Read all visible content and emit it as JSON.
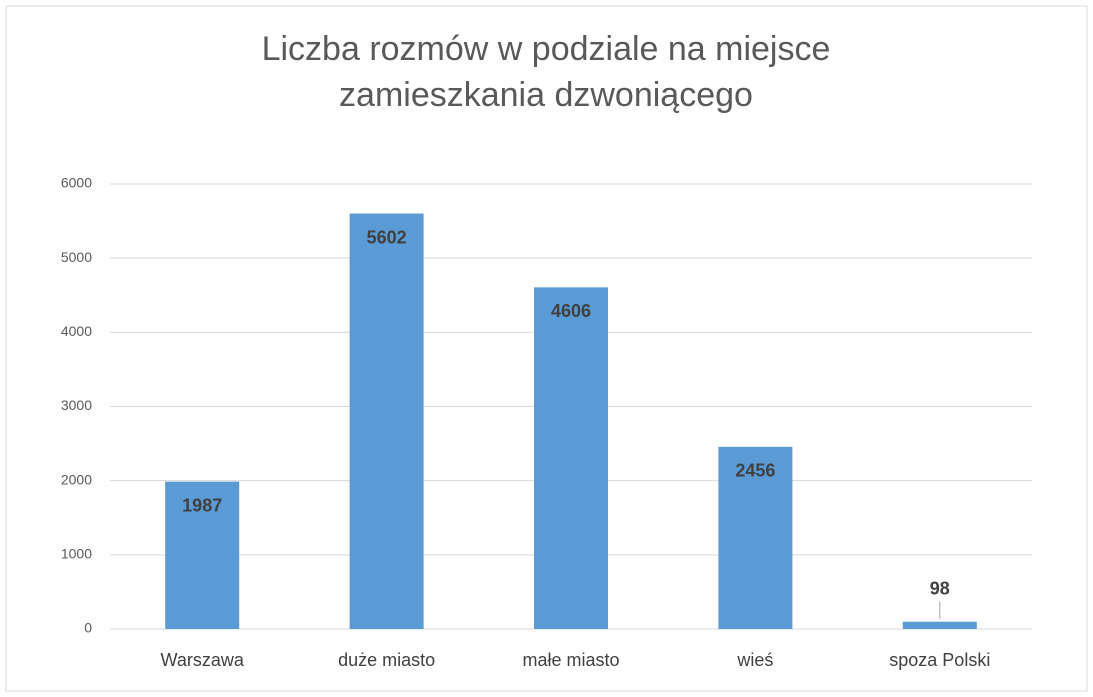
{
  "chart_data": {
    "type": "bar",
    "title": "Liczba rozmów w podziale na miejsce zamieszkania dzwoniącego",
    "categories": [
      "Warszawa",
      "duże miasto",
      "małe miasto",
      "wieś",
      "spoza Polski"
    ],
    "values": [
      1987,
      5602,
      4606,
      2456,
      98
    ],
    "color": "#5b9bd5",
    "ylim": [
      0,
      6000
    ],
    "yticks": [
      0,
      1000,
      2000,
      3000,
      4000,
      5000,
      6000
    ],
    "grid": true
  }
}
